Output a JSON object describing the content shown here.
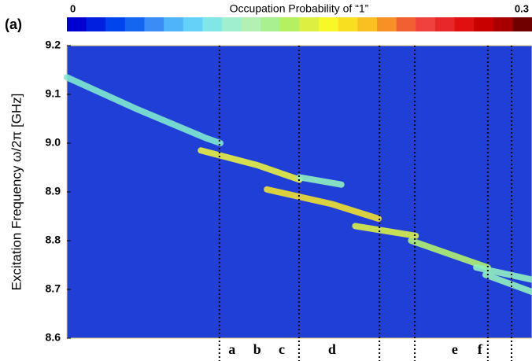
{
  "chart_data": {
    "type": "heatmap-lines",
    "panel_label": "(a)",
    "colorbar": {
      "title": "Occupation Probability of “1”",
      "clim": [
        0,
        0.3
      ],
      "ticks": [
        0,
        0.3
      ],
      "colors": [
        "#0000d0",
        "#0020e0",
        "#0044ee",
        "#1466f0",
        "#3c8cf8",
        "#50b4f8",
        "#64d2f8",
        "#80e6e6",
        "#a0f0d0",
        "#b4f0b4",
        "#a8f090",
        "#b4f060",
        "#dcf040",
        "#f8f828",
        "#f8e020",
        "#f8c020",
        "#f89028",
        "#f06030",
        "#f04040",
        "#e82828",
        "#e01010",
        "#c80000",
        "#a80000",
        "#700000"
      ]
    },
    "ylabel": "Excitation Frequency ω/2π [GHz]",
    "ylim": [
      8.6,
      9.2
    ],
    "yticks": [
      8.6,
      8.7,
      8.8,
      8.9,
      {
        "value": 9,
        "label": "9.0"
      },
      9.1,
      9.2
    ],
    "xlim": [
      0,
      100
    ],
    "background": "#1f3fd6",
    "series": [
      {
        "color": "#7fe8d0",
        "x": [
          0,
          15,
          30,
          33
        ],
        "values": [
          9.135,
          9.07,
          9.01,
          9.0
        ]
      },
      {
        "color": "#e8f040",
        "x": [
          28.8,
          40.9,
          50
        ],
        "values": [
          8.985,
          8.955,
          8.925
        ]
      },
      {
        "color": "#90f0c0",
        "x": [
          50,
          59
        ],
        "values": [
          8.93,
          8.915
        ]
      },
      {
        "color": "#f0e030",
        "x": [
          43,
          57,
          67
        ],
        "values": [
          8.905,
          8.875,
          8.845
        ]
      },
      {
        "color": "#d8f048",
        "x": [
          62,
          75
        ],
        "values": [
          8.83,
          8.81
        ]
      },
      {
        "color": "#b0f070",
        "x": [
          74,
          90.5
        ],
        "values": [
          8.8,
          8.745
        ]
      },
      {
        "color": "#90f0c0",
        "x": [
          88,
          100
        ],
        "values": [
          8.745,
          8.72
        ]
      },
      {
        "color": "#90f0c0",
        "x": [
          90,
          100
        ],
        "values": [
          8.73,
          8.695
        ]
      }
    ],
    "dividers": [
      32.8,
      49.9,
      67.2,
      74.8,
      90.5,
      95.6
    ],
    "markers": [
      {
        "label": "a",
        "x": 35.5
      },
      {
        "label": "b",
        "x": 40.9
      },
      {
        "label": "c",
        "x": 46.2
      },
      {
        "label": "d",
        "x": 57.0
      },
      {
        "label": "e",
        "x": 83.4
      },
      {
        "label": "f",
        "x": 88.8
      }
    ]
  }
}
